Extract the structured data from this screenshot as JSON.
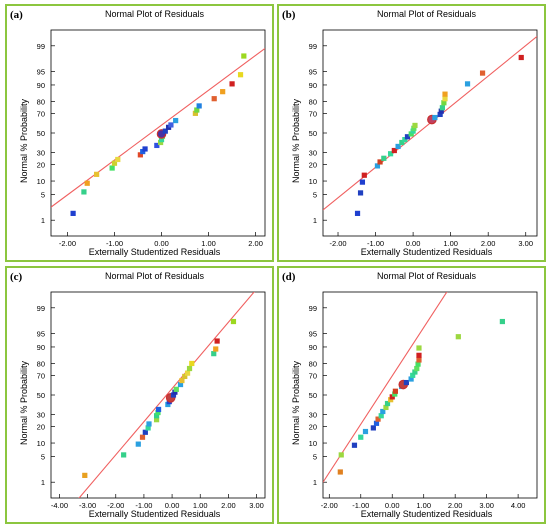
{
  "figure": {
    "panels": [
      {
        "tag": "(a)",
        "title": "Normal Plot of Residuals",
        "xlabel": "Externally Studentized Residuals",
        "ylabel": "Normal % Probability"
      },
      {
        "tag": "(b)",
        "title": "Normal Plot of Residuals",
        "xlabel": "Externally Studentized Residuals",
        "ylabel": "Normal % Probability"
      },
      {
        "tag": "(c)",
        "title": "Normal Plot of Residuals",
        "xlabel": "Externally Studentized Residuals",
        "ylabel": "Normal % Probability"
      },
      {
        "tag": "(d)",
        "title": "Normal Plot of Residuals",
        "xlabel": "Externally Studentized Residuals",
        "ylabel": "Normal % Probability"
      }
    ]
  },
  "colors": {
    "border": "#8cc63f",
    "fit_line": "#f06060",
    "frame": "#000000"
  },
  "chart_data": [
    {
      "type": "scatter",
      "title": "Normal Plot of Residuals",
      "xlabel": "Externally Studentized Residuals",
      "ylabel": "Normal % Probability",
      "x_ticks": [
        -2.0,
        -1.0,
        0.0,
        1.0,
        2.0
      ],
      "x_tick_labels": [
        "-2.00",
        "-1.00",
        "0.00",
        "1.00",
        "2.00"
      ],
      "y_ticks": [
        1,
        5,
        10,
        20,
        30,
        50,
        70,
        80,
        90,
        95,
        99
      ],
      "y_tick_labels": [
        "1",
        "5",
        "10",
        "20",
        "30",
        "50",
        "70",
        "80",
        "90",
        "95",
        "99"
      ],
      "xlim": [
        -2.35,
        2.2
      ],
      "fit_line": [
        [
          -2.35,
          2.4
        ],
        [
          2.2,
          98.8
        ]
      ],
      "points": [
        {
          "x": -1.88,
          "y": 1.6,
          "color": "#1f3fcf"
        },
        {
          "x": -1.65,
          "y": 5.8,
          "color": "#35d08a"
        },
        {
          "x": -1.58,
          "y": 9.0,
          "color": "#f0a020"
        },
        {
          "x": -1.38,
          "y": 13.5,
          "color": "#e8c030"
        },
        {
          "x": -1.05,
          "y": 17.5,
          "color": "#45e065"
        },
        {
          "x": -1.0,
          "y": 21.0,
          "color": "#ccd030"
        },
        {
          "x": -0.93,
          "y": 24.0,
          "color": "#e8d840"
        },
        {
          "x": -0.45,
          "y": 28.0,
          "color": "#e04828"
        },
        {
          "x": -0.4,
          "y": 31.0,
          "color": "#2060e0"
        },
        {
          "x": -0.35,
          "y": 33.5,
          "color": "#1f3fcf"
        },
        {
          "x": -0.1,
          "y": 37.0,
          "color": "#3050e0"
        },
        {
          "x": -0.02,
          "y": 40.0,
          "color": "#9cd840"
        },
        {
          "x": 0.0,
          "y": 43.0,
          "color": "#34d89a"
        },
        {
          "x": 0.02,
          "y": 46.5,
          "color": "#60e060"
        },
        {
          "x": 0.0,
          "y": 49.0,
          "color": "#4a30a0",
          "outlined": true
        },
        {
          "x": 0.08,
          "y": 52.0,
          "color": "#2040c0"
        },
        {
          "x": 0.15,
          "y": 56.0,
          "color": "#2030b0"
        },
        {
          "x": 0.2,
          "y": 58.5,
          "color": "#4060e0"
        },
        {
          "x": 0.3,
          "y": 63.0,
          "color": "#2aa0e0"
        },
        {
          "x": 0.72,
          "y": 70.0,
          "color": "#d8c030"
        },
        {
          "x": 0.75,
          "y": 73.0,
          "color": "#70d840"
        },
        {
          "x": 0.8,
          "y": 76.5,
          "color": "#2080e0"
        },
        {
          "x": 1.12,
          "y": 82.0,
          "color": "#e06030"
        },
        {
          "x": 1.3,
          "y": 86.5,
          "color": "#f0a020"
        },
        {
          "x": 1.5,
          "y": 90.5,
          "color": "#d02020"
        },
        {
          "x": 1.68,
          "y": 94.0,
          "color": "#e8d820"
        },
        {
          "x": 1.75,
          "y": 98.0,
          "color": "#9cd820"
        }
      ]
    },
    {
      "type": "scatter",
      "title": "Normal Plot of Residuals",
      "xlabel": "Externally Studentized Residuals",
      "ylabel": "Normal % Probability",
      "x_ticks": [
        -2.0,
        -1.0,
        0.0,
        1.0,
        2.0,
        3.0
      ],
      "x_tick_labels": [
        "-2.00",
        "-1.00",
        "0.00",
        "1.00",
        "2.00",
        "3.00"
      ],
      "y_ticks": [
        1,
        5,
        10,
        20,
        30,
        50,
        70,
        80,
        90,
        95,
        99
      ],
      "y_tick_labels": [
        "1",
        "5",
        "10",
        "20",
        "30",
        "50",
        "70",
        "80",
        "90",
        "95",
        "99"
      ],
      "xlim": [
        -2.4,
        3.3
      ],
      "fit_line": [
        [
          -2.4,
          2.0
        ],
        [
          3.3,
          99.5
        ]
      ],
      "points": [
        {
          "x": -1.48,
          "y": 1.6,
          "color": "#1f3fcf"
        },
        {
          "x": -1.4,
          "y": 5.5,
          "color": "#2040c0"
        },
        {
          "x": -1.35,
          "y": 9.5,
          "color": "#1f3fcf"
        },
        {
          "x": -1.3,
          "y": 13.0,
          "color": "#d02020"
        },
        {
          "x": -0.95,
          "y": 19.0,
          "color": "#2aa0e0"
        },
        {
          "x": -0.88,
          "y": 22.0,
          "color": "#d04020"
        },
        {
          "x": -0.78,
          "y": 25.0,
          "color": "#35d08a"
        },
        {
          "x": -0.6,
          "y": 29.0,
          "color": "#34d89a"
        },
        {
          "x": -0.5,
          "y": 32.0,
          "color": "#d02020"
        },
        {
          "x": -0.4,
          "y": 36.0,
          "color": "#2aa0e0"
        },
        {
          "x": -0.3,
          "y": 40.0,
          "color": "#35d08a"
        },
        {
          "x": -0.22,
          "y": 43.0,
          "color": "#34d89a"
        },
        {
          "x": -0.15,
          "y": 46.0,
          "color": "#2040c0"
        },
        {
          "x": -0.05,
          "y": 49.0,
          "color": "#45e065"
        },
        {
          "x": 0.0,
          "y": 52.0,
          "color": "#34d89a"
        },
        {
          "x": 0.02,
          "y": 55.0,
          "color": "#60e060"
        },
        {
          "x": 0.05,
          "y": 58.0,
          "color": "#9cd840"
        },
        {
          "x": 0.5,
          "y": 64.0,
          "color": "#c04060",
          "outlined": true
        },
        {
          "x": 0.58,
          "y": 66.0,
          "color": "#2aa0e0"
        },
        {
          "x": 0.72,
          "y": 69.0,
          "color": "#2040c0"
        },
        {
          "x": 0.75,
          "y": 72.0,
          "color": "#2030b0"
        },
        {
          "x": 0.78,
          "y": 75.0,
          "color": "#35d08a"
        },
        {
          "x": 0.82,
          "y": 79.0,
          "color": "#70d840"
        },
        {
          "x": 0.85,
          "y": 82.0,
          "color": "#e8d840"
        },
        {
          "x": 0.85,
          "y": 85.0,
          "color": "#f0a020"
        },
        {
          "x": 1.45,
          "y": 90.5,
          "color": "#2aa0e0"
        },
        {
          "x": 1.85,
          "y": 94.5,
          "color": "#e06030"
        },
        {
          "x": 2.88,
          "y": 97.8,
          "color": "#d02020"
        }
      ]
    },
    {
      "type": "scatter",
      "title": "Normal Plot of Residuals",
      "xlabel": "Externally Studentized Residuals",
      "ylabel": "Normal % Probability",
      "x_ticks": [
        -4.0,
        -3.0,
        -2.0,
        -1.0,
        0.0,
        1.0,
        2.0,
        3.0
      ],
      "x_tick_labels": [
        "-4.00",
        "-3.00",
        "-2.00",
        "-1.00",
        "0.00",
        "1.00",
        "2.00",
        "3.00"
      ],
      "y_ticks": [
        1,
        5,
        10,
        20,
        30,
        50,
        70,
        80,
        90,
        95,
        99
      ],
      "y_tick_labels": [
        "1",
        "5",
        "10",
        "20",
        "30",
        "50",
        "70",
        "80",
        "90",
        "95",
        "99"
      ],
      "xlim": [
        -4.3,
        3.3
      ],
      "fit_line": [
        [
          -3.45,
          0.2
        ],
        [
          3.3,
          99.9
        ]
      ],
      "points": [
        {
          "x": -3.1,
          "y": 1.6,
          "color": "#e8a020"
        },
        {
          "x": -1.72,
          "y": 5.5,
          "color": "#35d08a"
        },
        {
          "x": -1.2,
          "y": 9.5,
          "color": "#2aa0e0"
        },
        {
          "x": -1.05,
          "y": 13.0,
          "color": "#e06030"
        },
        {
          "x": -0.95,
          "y": 16.0,
          "color": "#2040c0"
        },
        {
          "x": -0.85,
          "y": 19.0,
          "color": "#34d89a"
        },
        {
          "x": -0.82,
          "y": 22.0,
          "color": "#2aa0e0"
        },
        {
          "x": -0.55,
          "y": 25.5,
          "color": "#9cd840"
        },
        {
          "x": -0.55,
          "y": 29.0,
          "color": "#35d08a"
        },
        {
          "x": -0.5,
          "y": 32.0,
          "color": "#45e065"
        },
        {
          "x": -0.48,
          "y": 35.0,
          "color": "#2060e0"
        },
        {
          "x": -0.15,
          "y": 40.0,
          "color": "#2aa0e0"
        },
        {
          "x": -0.1,
          "y": 43.0,
          "color": "#1f3fcf"
        },
        {
          "x": -0.05,
          "y": 47.0,
          "color": "#c04040",
          "outlined": true
        },
        {
          "x": 0.05,
          "y": 50.0,
          "color": "#2040c0"
        },
        {
          "x": 0.1,
          "y": 53.0,
          "color": "#2030b0"
        },
        {
          "x": 0.15,
          "y": 56.0,
          "color": "#60e060"
        },
        {
          "x": 0.3,
          "y": 61.0,
          "color": "#2aa0e0"
        },
        {
          "x": 0.35,
          "y": 65.0,
          "color": "#e8c030"
        },
        {
          "x": 0.45,
          "y": 69.0,
          "color": "#d8c030"
        },
        {
          "x": 0.55,
          "y": 72.0,
          "color": "#e8d840"
        },
        {
          "x": 0.62,
          "y": 76.0,
          "color": "#9cd840"
        },
        {
          "x": 0.7,
          "y": 80.0,
          "color": "#e8d820"
        },
        {
          "x": 1.48,
          "y": 86.5,
          "color": "#35d08a"
        },
        {
          "x": 1.55,
          "y": 89.0,
          "color": "#f0a020"
        },
        {
          "x": 1.6,
          "y": 92.5,
          "color": "#d02020"
        },
        {
          "x": 2.18,
          "y": 97.5,
          "color": "#9cd820"
        }
      ]
    },
    {
      "type": "scatter",
      "title": "Normal Plot of Residuals",
      "xlabel": "Externally Studentized Residuals",
      "ylabel": "Normal % Probability",
      "x_ticks": [
        -2.0,
        -1.0,
        0.0,
        1.0,
        2.0,
        3.0,
        4.0
      ],
      "x_tick_labels": [
        "-2.00",
        "-1.00",
        "0.00",
        "1.00",
        "2.00",
        "3.00",
        "4.00"
      ],
      "y_ticks": [
        1,
        5,
        10,
        20,
        30,
        50,
        70,
        80,
        90,
        95,
        99
      ],
      "y_tick_labels": [
        "1",
        "5",
        "10",
        "20",
        "30",
        "50",
        "70",
        "80",
        "90",
        "95",
        "99"
      ],
      "xlim": [
        -2.2,
        4.6
      ],
      "fit_line": [
        [
          -2.2,
          1.0
        ],
        [
          2.0,
          99.9
        ]
      ],
      "points": [
        {
          "x": -1.65,
          "y": 2.0,
          "color": "#e08020"
        },
        {
          "x": -1.62,
          "y": 5.5,
          "color": "#9cd840"
        },
        {
          "x": -1.2,
          "y": 9.0,
          "color": "#2040c0"
        },
        {
          "x": -1.0,
          "y": 13.0,
          "color": "#34d89a"
        },
        {
          "x": -0.85,
          "y": 16.5,
          "color": "#2aa0e0"
        },
        {
          "x": -0.6,
          "y": 19.0,
          "color": "#2040c0"
        },
        {
          "x": -0.5,
          "y": 22.5,
          "color": "#2060e0"
        },
        {
          "x": -0.45,
          "y": 26.0,
          "color": "#e06030"
        },
        {
          "x": -0.35,
          "y": 29.0,
          "color": "#34d89a"
        },
        {
          "x": -0.3,
          "y": 33.0,
          "color": "#2aa0e0"
        },
        {
          "x": -0.2,
          "y": 37.0,
          "color": "#9cd840"
        },
        {
          "x": -0.15,
          "y": 41.0,
          "color": "#35d08a"
        },
        {
          "x": -0.05,
          "y": 45.0,
          "color": "#e8c030"
        },
        {
          "x": 0.0,
          "y": 48.0,
          "color": "#d02020"
        },
        {
          "x": 0.08,
          "y": 51.0,
          "color": "#45e065"
        },
        {
          "x": 0.1,
          "y": 54.0,
          "color": "#d04020"
        },
        {
          "x": 0.3,
          "y": 59.0,
          "color": "#2aa0e0"
        },
        {
          "x": 0.35,
          "y": 61.0,
          "color": "#c04040",
          "outlined": true
        },
        {
          "x": 0.45,
          "y": 63.0,
          "color": "#2040c0"
        },
        {
          "x": 0.6,
          "y": 66.5,
          "color": "#2aa0e0"
        },
        {
          "x": 0.65,
          "y": 70.0,
          "color": "#34d89a"
        },
        {
          "x": 0.72,
          "y": 73.0,
          "color": "#35d08a"
        },
        {
          "x": 0.78,
          "y": 76.0,
          "color": "#60e060"
        },
        {
          "x": 0.82,
          "y": 79.5,
          "color": "#45e065"
        },
        {
          "x": 0.85,
          "y": 82.5,
          "color": "#e06030"
        },
        {
          "x": 0.85,
          "y": 85.5,
          "color": "#d02020"
        },
        {
          "x": 0.85,
          "y": 89.5,
          "color": "#9cd840"
        },
        {
          "x": 2.1,
          "y": 94.0,
          "color": "#9cd840"
        },
        {
          "x": 3.5,
          "y": 97.5,
          "color": "#35d08a"
        }
      ]
    }
  ]
}
